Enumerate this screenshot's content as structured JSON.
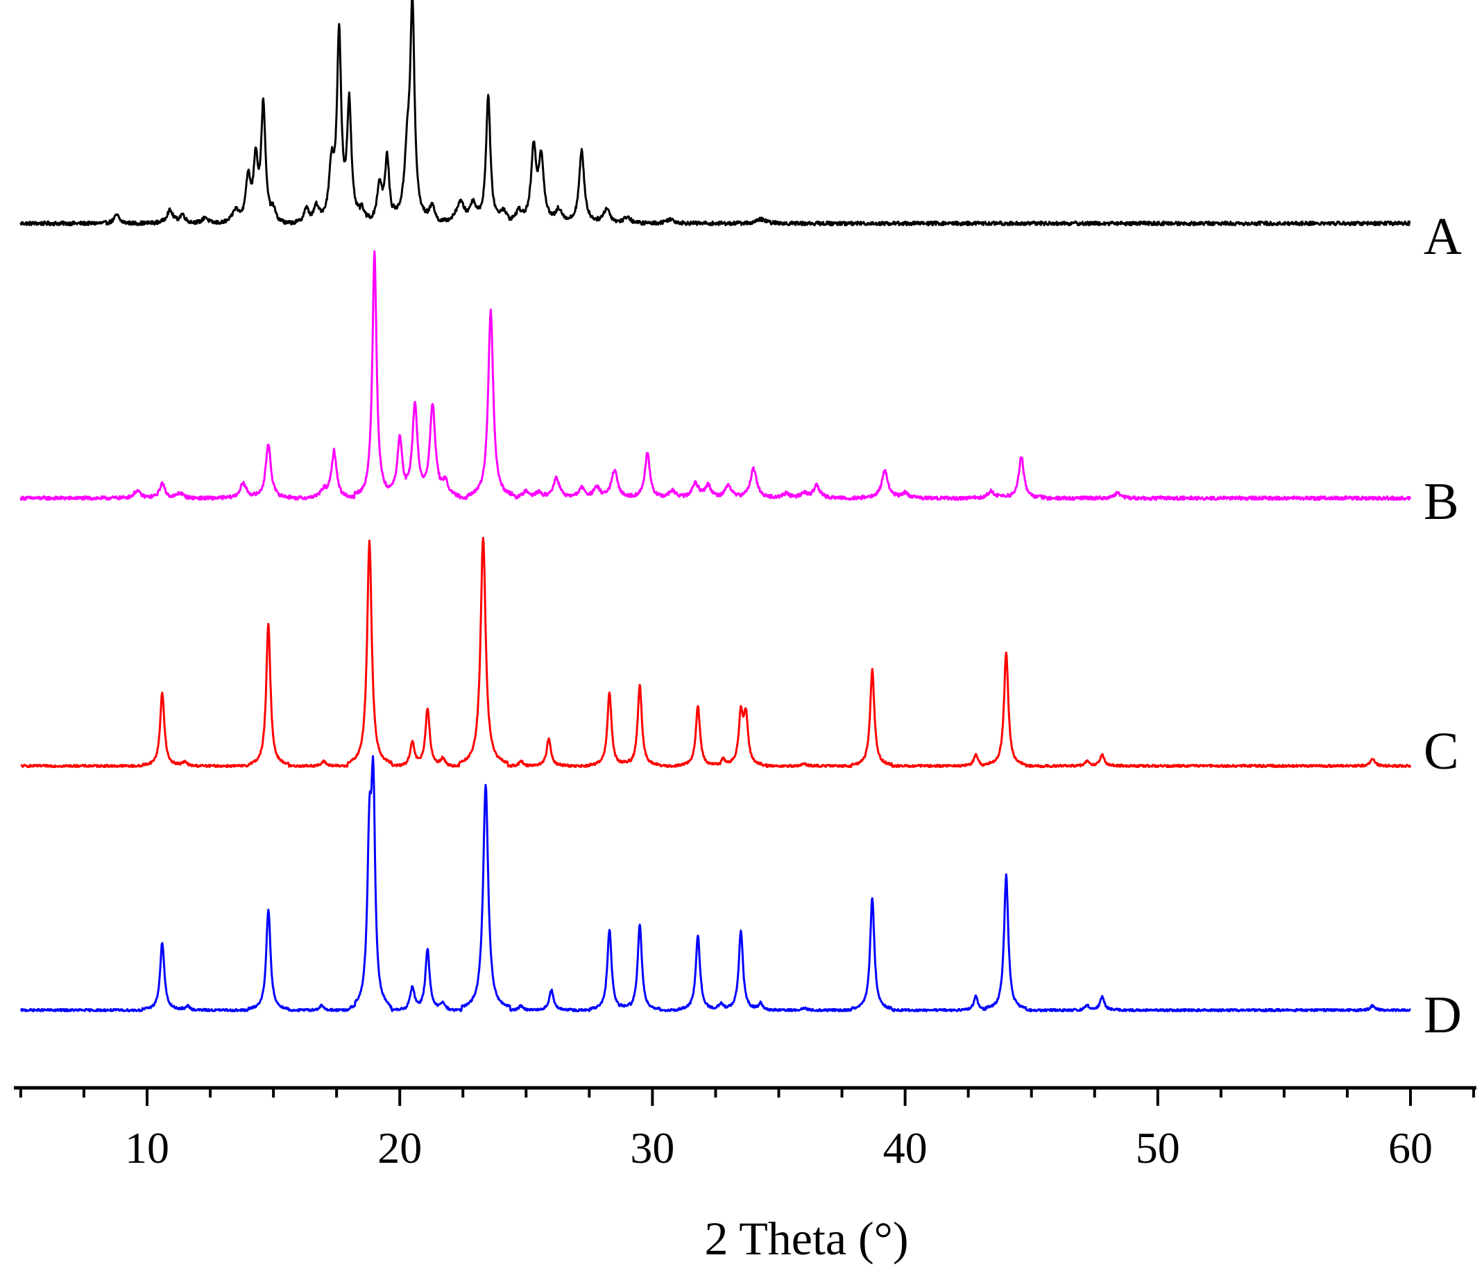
{
  "chart_data": {
    "type": "line",
    "title": "",
    "xlabel": "2 Theta (°)",
    "ylabel": "",
    "xlim": [
      5,
      63
    ],
    "x_ticks": [
      10,
      20,
      30,
      40,
      50,
      60
    ],
    "x_tick_labels": [
      "10",
      "20",
      "30",
      "40",
      "50",
      "60"
    ],
    "y_axis_shown": false,
    "grid": false,
    "legend": "none",
    "layout": "stacked-offset",
    "series": [
      {
        "name": "A",
        "color": "#000000",
        "x_range": [
          5,
          60
        ],
        "noise": 0.9,
        "peaks": [
          [
            8.8,
            4,
            0.12
          ],
          [
            10.9,
            6,
            0.15
          ],
          [
            11.4,
            4,
            0.12
          ],
          [
            12.3,
            3,
            0.12
          ],
          [
            13.5,
            6,
            0.15
          ],
          [
            14.0,
            20,
            0.12
          ],
          [
            14.3,
            28,
            0.1
          ],
          [
            14.6,
            55,
            0.1
          ],
          [
            15.0,
            5,
            0.1
          ],
          [
            16.3,
            7,
            0.12
          ],
          [
            16.7,
            8,
            0.12
          ],
          [
            17.3,
            25,
            0.12
          ],
          [
            17.6,
            87,
            0.1
          ],
          [
            18.0,
            55,
            0.1
          ],
          [
            18.5,
            6,
            0.12
          ],
          [
            19.2,
            18,
            0.12
          ],
          [
            19.5,
            30,
            0.1
          ],
          [
            20.3,
            30,
            0.13
          ],
          [
            20.5,
            100,
            0.1
          ],
          [
            21.3,
            8,
            0.12
          ],
          [
            22.4,
            10,
            0.2
          ],
          [
            22.9,
            8,
            0.15
          ],
          [
            23.5,
            60,
            0.1
          ],
          [
            24.1,
            5,
            0.15
          ],
          [
            24.7,
            5,
            0.15
          ],
          [
            25.3,
            34,
            0.12
          ],
          [
            25.6,
            30,
            0.12
          ],
          [
            26.3,
            6,
            0.15
          ],
          [
            27.2,
            34,
            0.12
          ],
          [
            28.2,
            7,
            0.15
          ],
          [
            29.0,
            3,
            0.15
          ],
          [
            30.7,
            2,
            0.2
          ],
          [
            34.3,
            2,
            0.2
          ]
        ]
      },
      {
        "name": "B",
        "color": "#ff00ff",
        "x_range": [
          5,
          60
        ],
        "noise": 0.7,
        "peaks": [
          [
            9.6,
            3,
            0.15
          ],
          [
            10.6,
            6,
            0.12
          ],
          [
            11.3,
            2,
            0.15
          ],
          [
            13.8,
            6,
            0.15
          ],
          [
            14.8,
            22,
            0.12
          ],
          [
            17.0,
            3,
            0.15
          ],
          [
            17.4,
            19,
            0.12
          ],
          [
            19.0,
            100,
            0.1
          ],
          [
            20.0,
            24,
            0.12
          ],
          [
            20.6,
            37,
            0.12
          ],
          [
            21.3,
            37,
            0.13
          ],
          [
            21.8,
            6,
            0.15
          ],
          [
            23.6,
            76,
            0.12
          ],
          [
            25.0,
            3,
            0.15
          ],
          [
            25.5,
            2,
            0.15
          ],
          [
            26.2,
            8,
            0.15
          ],
          [
            27.2,
            4,
            0.15
          ],
          [
            27.8,
            4,
            0.15
          ],
          [
            28.5,
            11,
            0.15
          ],
          [
            29.8,
            18,
            0.12
          ],
          [
            30.8,
            3,
            0.15
          ],
          [
            31.7,
            6,
            0.15
          ],
          [
            32.2,
            5,
            0.15
          ],
          [
            33.0,
            5,
            0.15
          ],
          [
            34.0,
            12,
            0.15
          ],
          [
            35.3,
            2,
            0.15
          ],
          [
            36.0,
            2,
            0.15
          ],
          [
            36.5,
            5,
            0.15
          ],
          [
            39.2,
            11,
            0.15
          ],
          [
            40.0,
            2,
            0.15
          ],
          [
            43.4,
            3,
            0.15
          ],
          [
            44.6,
            17,
            0.12
          ],
          [
            48.4,
            2,
            0.15
          ]
        ]
      },
      {
        "name": "C",
        "color": "#ff0000",
        "x_range": [
          5,
          60
        ],
        "noise": 0.5,
        "peaks": [
          [
            10.6,
            32,
            0.1
          ],
          [
            11.5,
            2,
            0.1
          ],
          [
            14.8,
            62,
            0.1
          ],
          [
            17.0,
            2,
            0.1
          ],
          [
            18.8,
            98,
            0.11
          ],
          [
            20.5,
            10,
            0.1
          ],
          [
            21.1,
            25,
            0.1
          ],
          [
            21.7,
            3,
            0.1
          ],
          [
            23.3,
            100,
            0.12
          ],
          [
            24.8,
            2,
            0.1
          ],
          [
            25.9,
            12,
            0.1
          ],
          [
            28.3,
            32,
            0.1
          ],
          [
            29.5,
            35,
            0.1
          ],
          [
            31.8,
            26,
            0.1
          ],
          [
            32.8,
            3,
            0.1
          ],
          [
            33.5,
            22,
            0.1
          ],
          [
            33.7,
            21,
            0.1
          ],
          [
            36.0,
            1,
            0.1
          ],
          [
            38.7,
            42,
            0.1
          ],
          [
            42.8,
            5,
            0.1
          ],
          [
            44.0,
            50,
            0.1
          ],
          [
            47.2,
            2,
            0.1
          ],
          [
            47.8,
            5,
            0.1
          ],
          [
            58.5,
            3,
            0.1
          ]
        ]
      },
      {
        "name": "D",
        "color": "#0000ff",
        "x_range": [
          5,
          60
        ],
        "noise": 0.5,
        "peaks": [
          [
            10.6,
            30,
            0.1
          ],
          [
            11.6,
            2,
            0.1
          ],
          [
            14.8,
            45,
            0.1
          ],
          [
            16.9,
            2,
            0.1
          ],
          [
            18.8,
            70,
            0.1
          ],
          [
            18.95,
            90,
            0.09
          ],
          [
            20.5,
            10,
            0.1
          ],
          [
            21.1,
            27,
            0.1
          ],
          [
            21.7,
            3,
            0.1
          ],
          [
            23.4,
            100,
            0.12
          ],
          [
            24.8,
            2,
            0.1
          ],
          [
            26.0,
            9,
            0.1
          ],
          [
            28.3,
            36,
            0.1
          ],
          [
            29.5,
            38,
            0.1
          ],
          [
            31.8,
            33,
            0.1
          ],
          [
            32.7,
            3,
            0.1
          ],
          [
            33.5,
            35,
            0.1
          ],
          [
            34.3,
            3,
            0.1
          ],
          [
            36.0,
            1,
            0.1
          ],
          [
            38.7,
            50,
            0.1
          ],
          [
            42.8,
            6,
            0.1
          ],
          [
            44.0,
            60,
            0.1
          ],
          [
            47.2,
            2,
            0.1
          ],
          [
            47.8,
            6,
            0.1
          ],
          [
            58.5,
            2,
            0.1
          ]
        ]
      }
    ]
  }
}
